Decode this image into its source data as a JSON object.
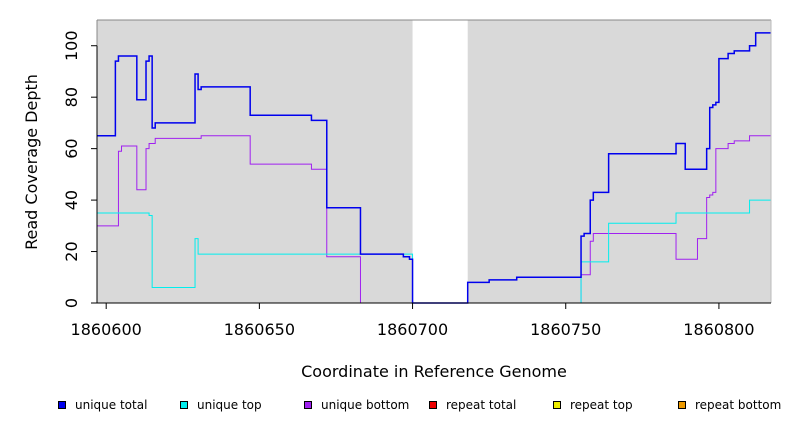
{
  "chart_data": {
    "type": "line",
    "xlabel": "Coordinate in Reference Genome",
    "ylabel": "Read Coverage Depth",
    "xlim": [
      1860597,
      1860817
    ],
    "ylim": [
      0,
      110
    ],
    "xticks": [
      1860600,
      1860650,
      1860700,
      1860750,
      1860800
    ],
    "yticks": [
      0,
      20,
      40,
      60,
      80,
      100
    ],
    "background": "#d9d9d9",
    "gap": [
      1860700,
      1860718
    ],
    "series": [
      {
        "name": "unique total",
        "color": "#0000ee",
        "x": [
          1860597,
          1860600,
          1860600,
          1860603,
          1860603,
          1860604,
          1860604,
          1860607,
          1860607,
          1860610,
          1860610,
          1860613,
          1860613,
          1860614,
          1860614,
          1860615,
          1860615,
          1860616,
          1860616,
          1860629,
          1860629,
          1860630,
          1860630,
          1860631,
          1860631,
          1860647,
          1860647,
          1860667,
          1860667,
          1860672,
          1860672,
          1860683,
          1860683,
          1860697,
          1860697,
          1860699,
          1860699,
          1860700,
          1860700,
          1860718,
          1860718,
          1860725,
          1860725,
          1860734,
          1860734,
          1860755,
          1860755,
          1860756,
          1860756,
          1860758,
          1860758,
          1860759,
          1860759,
          1860764,
          1860764,
          1860786,
          1860786,
          1860789,
          1860789,
          1860796,
          1860796,
          1860797,
          1860797,
          1860798,
          1860798,
          1860799,
          1860799,
          1860800,
          1860800,
          1860803,
          1860803,
          1860805,
          1860805,
          1860810,
          1860810,
          1860812,
          1860812,
          1860817
        ],
        "y": [
          65,
          65,
          65,
          65,
          94,
          94,
          96,
          96,
          96,
          96,
          79,
          79,
          94,
          94,
          96,
          96,
          68,
          68,
          70,
          70,
          89,
          89,
          83,
          83,
          84,
          84,
          73,
          73,
          71,
          71,
          37,
          37,
          19,
          19,
          18,
          18,
          17,
          17,
          0,
          0,
          8,
          8,
          9,
          9,
          10,
          10,
          26,
          26,
          27,
          27,
          40,
          40,
          43,
          43,
          58,
          58,
          62,
          62,
          52,
          52,
          60,
          60,
          76,
          76,
          77,
          77,
          78,
          78,
          95,
          95,
          97,
          97,
          98,
          98,
          100,
          100,
          105,
          105
        ]
      },
      {
        "name": "unique top",
        "color": "#00eeee",
        "x": [
          1860597,
          1860611,
          1860611,
          1860614,
          1860614,
          1860615,
          1860615,
          1860629,
          1860629,
          1860630,
          1860630,
          1860700,
          1860700,
          1860755,
          1860755,
          1860764,
          1860764,
          1860786,
          1860786,
          1860810,
          1860810,
          1860817
        ],
        "y": [
          35,
          35,
          35,
          35,
          34,
          34,
          6,
          6,
          25,
          25,
          19,
          19,
          0,
          0,
          16,
          16,
          31,
          31,
          35,
          35,
          40,
          40
        ]
      },
      {
        "name": "unique bottom",
        "color": "#a020f0",
        "x": [
          1860597,
          1860600,
          1860600,
          1860604,
          1860604,
          1860605,
          1860605,
          1860610,
          1860610,
          1860613,
          1860613,
          1860614,
          1860614,
          1860616,
          1860616,
          1860629,
          1860629,
          1860631,
          1860631,
          1860647,
          1860647,
          1860667,
          1860667,
          1860672,
          1860672,
          1860683,
          1860683,
          1860700,
          1860700,
          1860755,
          1860755,
          1860758,
          1860758,
          1860759,
          1860759,
          1860764,
          1860764,
          1860786,
          1860786,
          1860793,
          1860793,
          1860796,
          1860796,
          1860797,
          1860797,
          1860798,
          1860798,
          1860799,
          1860799,
          1860803,
          1860803,
          1860805,
          1860805,
          1860810,
          1860810,
          1860817
        ],
        "y": [
          30,
          30,
          30,
          30,
          59,
          59,
          61,
          61,
          44,
          44,
          60,
          60,
          62,
          62,
          64,
          64,
          64,
          64,
          65,
          65,
          54,
          54,
          52,
          52,
          18,
          18,
          0,
          0,
          0,
          0,
          11,
          11,
          24,
          24,
          27,
          27,
          27,
          27,
          17,
          17,
          25,
          25,
          41,
          41,
          42,
          42,
          43,
          43,
          60,
          60,
          62,
          62,
          63,
          63,
          65,
          65
        ]
      },
      {
        "name": "repeat total",
        "color": "#ee0000",
        "x": [
          1860597,
          1860817
        ],
        "y": [
          0,
          0
        ]
      },
      {
        "name": "repeat top",
        "color": "#eeee00",
        "x": [
          1860597,
          1860817
        ],
        "y": [
          0,
          0
        ]
      },
      {
        "name": "repeat bottom",
        "color": "#ee9a00",
        "x": [
          1860597,
          1860817
        ],
        "y": [
          0,
          0
        ]
      }
    ],
    "legend_position": "bottom"
  }
}
